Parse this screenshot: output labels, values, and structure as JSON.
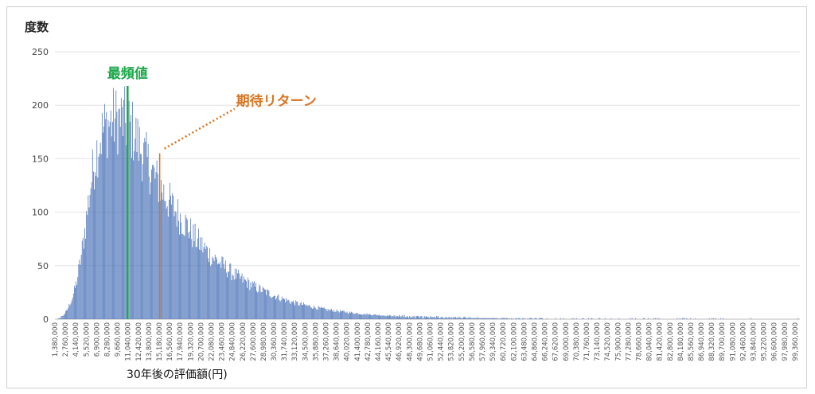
{
  "chart_data": {
    "type": "bar",
    "ylabel": "度数",
    "xlabel": "30年後の評価額(円)",
    "ylim": [
      0,
      250
    ],
    "yticks": [
      0,
      50,
      100,
      150,
      200,
      250
    ],
    "grid": true,
    "bar_color": "#4a72b8",
    "bin_width": 115000,
    "x_start": 1380000,
    "x_end": 100000000,
    "tick_labels": [
      "1,380,000",
      "2,760,000",
      "4,140,000",
      "5,520,000",
      "6,900,000",
      "8,280,000",
      "9,660,000",
      "11,040,000",
      "12,420,000",
      "13,800,000",
      "15,180,000",
      "16,560,000",
      "17,940,000",
      "19,320,000",
      "20,700,000",
      "22,080,000",
      "23,460,000",
      "24,840,000",
      "26,220,000",
      "27,600,000",
      "28,980,000",
      "30,360,000",
      "31,740,000",
      "33,120,000",
      "34,500,000",
      "35,880,000",
      "37,260,000",
      "38,640,000",
      "40,020,000",
      "41,400,000",
      "42,780,000",
      "44,160,000",
      "45,540,000",
      "46,920,000",
      "48,300,000",
      "49,680,000",
      "51,060,000",
      "52,440,000",
      "53,820,000",
      "55,200,000",
      "56,580,000",
      "57,960,000",
      "59,340,000",
      "60,720,000",
      "62,100,000",
      "63,480,000",
      "64,860,000",
      "66,240,000",
      "67,620,000",
      "69,000,000",
      "70,380,000",
      "71,760,000",
      "73,140,000",
      "74,520,000",
      "75,900,000",
      "77,280,000",
      "78,660,000",
      "80,040,000",
      "81,420,000",
      "82,800,000",
      "84,180,000",
      "85,560,000",
      "86,940,000",
      "88,320,000",
      "89,700,000",
      "91,080,000",
      "92,460,000",
      "93,840,000",
      "95,220,000",
      "96,600,000",
      "97,980,000",
      "99,360,000"
    ],
    "profile_points": [
      [
        1380000,
        0
      ],
      [
        2300000,
        2
      ],
      [
        3000000,
        8
      ],
      [
        3700000,
        20
      ],
      [
        4300000,
        35
      ],
      [
        4900000,
        60
      ],
      [
        5500000,
        90
      ],
      [
        6100000,
        125
      ],
      [
        6700000,
        150
      ],
      [
        7300000,
        168
      ],
      [
        7900000,
        178
      ],
      [
        8500000,
        183
      ],
      [
        9200000,
        186
      ],
      [
        9900000,
        187
      ],
      [
        10600000,
        185
      ],
      [
        11300000,
        180
      ],
      [
        12000000,
        172
      ],
      [
        12700000,
        160
      ],
      [
        13400000,
        150
      ],
      [
        14100000,
        140
      ],
      [
        14800000,
        130
      ],
      [
        15500000,
        122
      ],
      [
        16300000,
        112
      ],
      [
        17100000,
        104
      ],
      [
        17900000,
        96
      ],
      [
        18800000,
        88
      ],
      [
        19700000,
        78
      ],
      [
        20700000,
        70
      ],
      [
        21700000,
        62
      ],
      [
        22800000,
        55
      ],
      [
        24000000,
        48
      ],
      [
        25300000,
        41
      ],
      [
        26700000,
        35
      ],
      [
        28200000,
        29
      ],
      [
        29800000,
        24
      ],
      [
        31500000,
        19
      ],
      [
        33300000,
        15
      ],
      [
        35200000,
        12
      ],
      [
        37300000,
        9
      ],
      [
        39600000,
        7
      ],
      [
        42000000,
        5
      ],
      [
        45000000,
        3.5
      ],
      [
        48000000,
        2.5
      ],
      [
        52000000,
        1.8
      ],
      [
        56000000,
        1.2
      ],
      [
        60000000,
        0.8
      ],
      [
        66000000,
        0.5
      ],
      [
        72000000,
        0.3
      ],
      [
        80000000,
        0.2
      ],
      [
        90000000,
        0.1
      ],
      [
        100000000,
        0.05
      ]
    ],
    "mode": {
      "label": "最頻値",
      "x": 11000000,
      "value": 218,
      "color": "#1ea84a"
    },
    "expected_return": {
      "label": "期待リターン",
      "x": 15250000,
      "value": 155,
      "color": "#d9731f"
    },
    "far_outlier": {
      "x": 99700000,
      "value": 1
    }
  }
}
